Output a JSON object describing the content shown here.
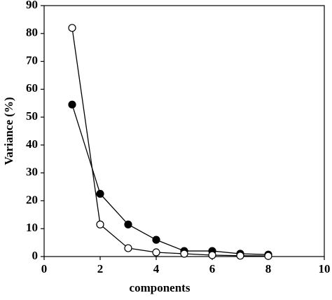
{
  "chart_data": {
    "type": "line",
    "xlabel": "components",
    "ylabel": "Variance (%)",
    "x": [
      1,
      2,
      3,
      4,
      5,
      6,
      7,
      8
    ],
    "series": [
      {
        "color": "#000000",
        "values": [
          54.5,
          22.5,
          11.5,
          6,
          2,
          2,
          1,
          0.7
        ]
      },
      {
        "color": "#ffffff",
        "values": [
          82,
          11.5,
          3,
          1.5,
          1,
          0.5,
          0.3,
          0.2
        ]
      }
    ],
    "xlim": [
      0,
      10
    ],
    "xticks": [
      0,
      2,
      4,
      6,
      8,
      10
    ],
    "ylim": [
      0,
      90
    ],
    "yticks": [
      0,
      10,
      20,
      30,
      40,
      50,
      60,
      70,
      80,
      90
    ],
    "grid": false
  }
}
